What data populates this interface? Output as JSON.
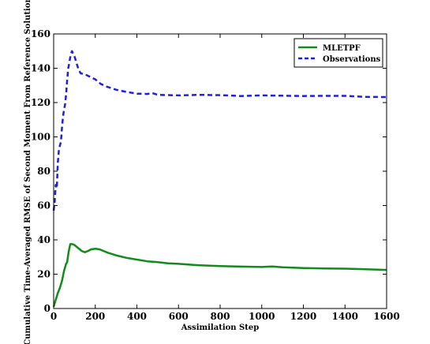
{
  "chart_data": {
    "type": "line",
    "title": "",
    "xlabel": "Assimilation Step",
    "ylabel": "Cumulative Time-Averaged RMSE of Second Moment From Reference Solution",
    "xlim": [
      0,
      1600
    ],
    "ylim": [
      0,
      160
    ],
    "xticks": [
      0,
      200,
      400,
      600,
      800,
      1000,
      1200,
      1400,
      1600
    ],
    "yticks": [
      0,
      20,
      40,
      60,
      80,
      100,
      120,
      140,
      160
    ],
    "grid": false,
    "legend_position": "top-right",
    "series": [
      {
        "name": "MLETPF",
        "color": "#138a1c",
        "style": "solid",
        "points": [
          [
            0,
            1
          ],
          [
            10,
            5
          ],
          [
            20,
            9
          ],
          [
            30,
            12
          ],
          [
            40,
            16
          ],
          [
            50,
            22
          ],
          [
            60,
            26
          ],
          [
            65,
            27
          ],
          [
            72,
            33
          ],
          [
            80,
            37.5
          ],
          [
            90,
            37.5
          ],
          [
            100,
            37
          ],
          [
            110,
            36
          ],
          [
            120,
            35
          ],
          [
            135,
            33.5
          ],
          [
            150,
            32.8
          ],
          [
            165,
            33.5
          ],
          [
            180,
            34.5
          ],
          [
            200,
            34.8
          ],
          [
            220,
            34.5
          ],
          [
            240,
            33.5
          ],
          [
            260,
            32.5
          ],
          [
            300,
            31
          ],
          [
            350,
            29.5
          ],
          [
            400,
            28.5
          ],
          [
            450,
            27.5
          ],
          [
            500,
            27
          ],
          [
            550,
            26.3
          ],
          [
            600,
            26
          ],
          [
            700,
            25.2
          ],
          [
            800,
            24.7
          ],
          [
            900,
            24.4
          ],
          [
            1000,
            24.2
          ],
          [
            1050,
            24.5
          ],
          [
            1100,
            24
          ],
          [
            1200,
            23.6
          ],
          [
            1300,
            23.3
          ],
          [
            1400,
            23.2
          ],
          [
            1500,
            22.9
          ],
          [
            1600,
            22.5
          ]
        ]
      },
      {
        "name": "Observations",
        "color": "#1f1fe0",
        "style": "dashed",
        "points": [
          [
            0,
            57
          ],
          [
            5,
            62
          ],
          [
            10,
            72
          ],
          [
            15,
            70
          ],
          [
            20,
            85
          ],
          [
            25,
            92
          ],
          [
            30,
            95
          ],
          [
            35,
            97
          ],
          [
            40,
            105
          ],
          [
            45,
            112
          ],
          [
            50,
            116
          ],
          [
            55,
            119
          ],
          [
            60,
            125
          ],
          [
            65,
            133
          ],
          [
            70,
            140
          ],
          [
            75,
            143
          ],
          [
            82,
            148
          ],
          [
            88,
            150
          ],
          [
            95,
            148
          ],
          [
            100,
            147
          ],
          [
            110,
            143
          ],
          [
            120,
            139
          ],
          [
            130,
            137
          ],
          [
            150,
            136.5
          ],
          [
            175,
            135
          ],
          [
            200,
            133.5
          ],
          [
            225,
            131
          ],
          [
            250,
            129.5
          ],
          [
            300,
            127.5
          ],
          [
            350,
            126.2
          ],
          [
            400,
            125.2
          ],
          [
            450,
            125
          ],
          [
            475,
            125.5
          ],
          [
            500,
            124.5
          ],
          [
            600,
            124.2
          ],
          [
            700,
            124.5
          ],
          [
            800,
            124.3
          ],
          [
            900,
            123.8
          ],
          [
            1000,
            124.2
          ],
          [
            1100,
            124
          ],
          [
            1200,
            123.8
          ],
          [
            1300,
            123.9
          ],
          [
            1400,
            123.9
          ],
          [
            1500,
            123.3
          ],
          [
            1600,
            123.2
          ]
        ]
      }
    ]
  }
}
